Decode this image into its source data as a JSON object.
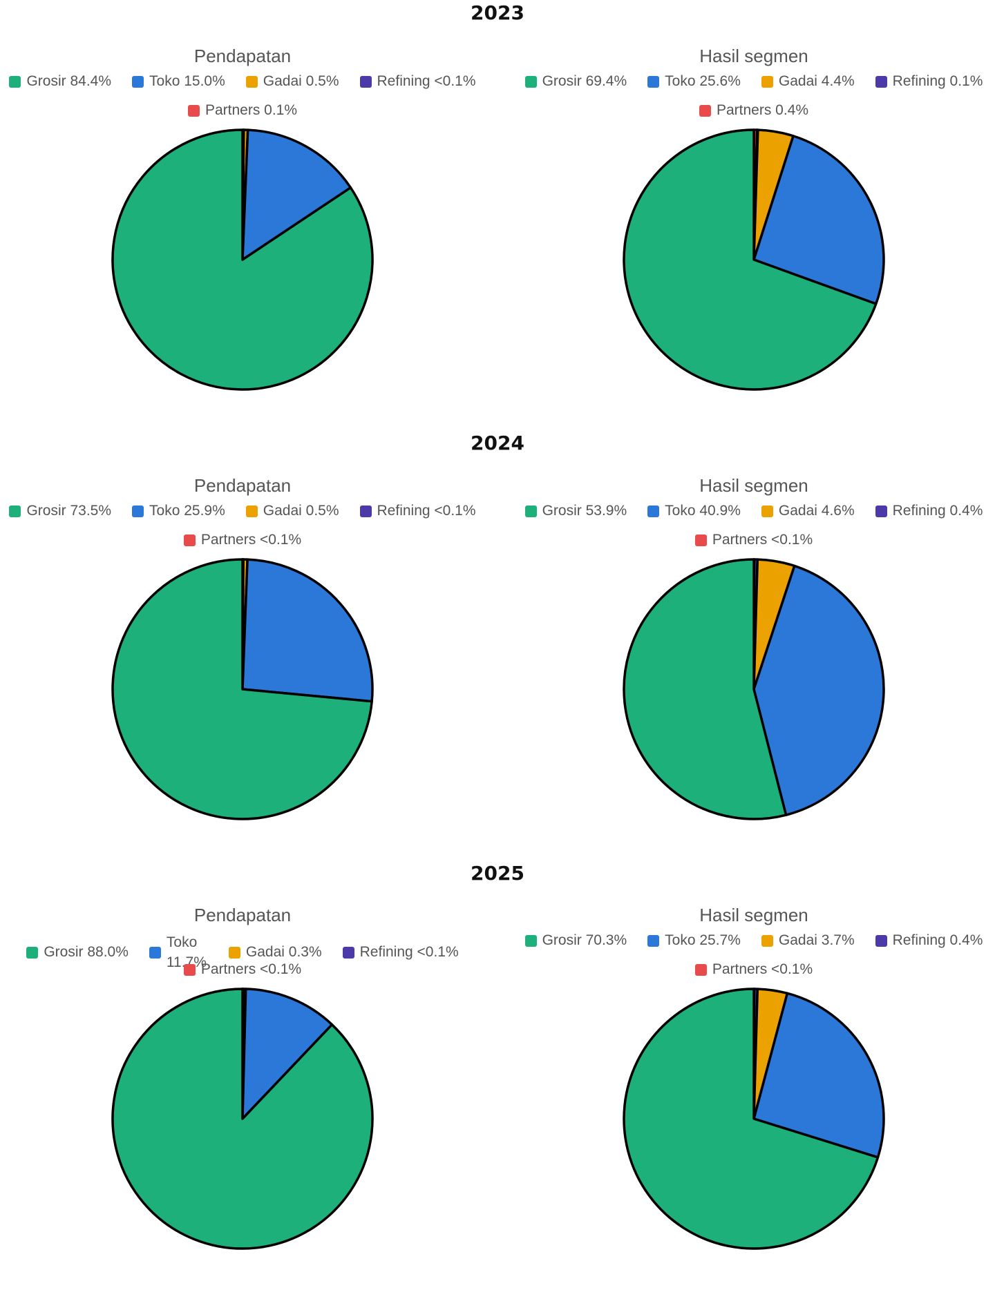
{
  "chart_data": [
    {
      "type": "pie",
      "group_title": "2023",
      "title": "Pendapatan",
      "labels": [
        "Grosir",
        "Toko",
        "Gadai",
        "Refining",
        "Partners"
      ],
      "legend_text": [
        "Grosir 84.4%",
        "Toko 15.0%",
        "Gadai 0.5%",
        "Refining <0.1%",
        "Partners 0.1%"
      ],
      "values": [
        84.4,
        15.0,
        0.5,
        0.05,
        0.1
      ]
    },
    {
      "type": "pie",
      "group_title": "2023",
      "title": "Hasil segmen",
      "labels": [
        "Grosir",
        "Toko",
        "Gadai",
        "Refining",
        "Partners"
      ],
      "legend_text": [
        "Grosir 69.4%",
        "Toko 25.6%",
        "Gadai 4.4%",
        "Refining 0.1%",
        "Partners 0.4%"
      ],
      "values": [
        69.4,
        25.6,
        4.4,
        0.1,
        0.4
      ]
    },
    {
      "type": "pie",
      "group_title": "2024",
      "title": "Pendapatan",
      "labels": [
        "Grosir",
        "Toko",
        "Gadai",
        "Refining",
        "Partners"
      ],
      "legend_text": [
        "Grosir 73.5%",
        "Toko 25.9%",
        "Gadai 0.5%",
        "Refining <0.1%",
        "Partners <0.1%"
      ],
      "values": [
        73.5,
        25.9,
        0.5,
        0.05,
        0.05
      ]
    },
    {
      "type": "pie",
      "group_title": "2024",
      "title": "Hasil segmen",
      "labels": [
        "Grosir",
        "Toko",
        "Gadai",
        "Refining",
        "Partners"
      ],
      "legend_text": [
        "Grosir 53.9%",
        "Toko 40.9%",
        "Gadai 4.6%",
        "Refining 0.4%",
        "Partners <0.1%"
      ],
      "values": [
        53.9,
        40.9,
        4.6,
        0.4,
        0.05
      ]
    },
    {
      "type": "pie",
      "group_title": "2025",
      "title": "Pendapatan",
      "labels": [
        "Grosir",
        "Toko",
        "Gadai",
        "Refining",
        "Partners"
      ],
      "legend_text": [
        "Grosir 88.0%",
        "Toko 11.7%",
        "Gadai 0.3%",
        "Refining <0.1%",
        "Partners <0.1%"
      ],
      "values": [
        88.0,
        11.7,
        0.3,
        0.05,
        0.05
      ]
    },
    {
      "type": "pie",
      "group_title": "2025",
      "title": "Hasil segmen",
      "labels": [
        "Grosir",
        "Toko",
        "Gadai",
        "Refining",
        "Partners"
      ],
      "legend_text": [
        "Grosir 70.3%",
        "Toko 25.7%",
        "Gadai 3.7%",
        "Refining 0.4%",
        "Partners <0.1%"
      ],
      "values": [
        70.3,
        25.7,
        3.7,
        0.4,
        0.05
      ]
    }
  ],
  "years": [
    "2023",
    "2024",
    "2025"
  ],
  "colors": {
    "Grosir": "#1db07a",
    "Toko": "#2b78d8",
    "Gadai": "#eba200",
    "Refining": "#4b3aa8",
    "Partners": "#e84b4b",
    "outline": "#000000"
  }
}
